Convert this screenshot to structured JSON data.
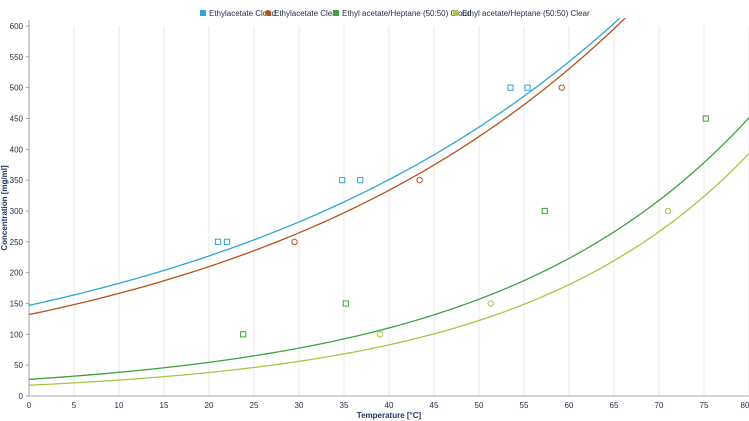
{
  "chart_data": {
    "type": "scatter",
    "title": "",
    "xlabel": "Temperature [°C]",
    "ylabel": "Concentration [mg/ml]",
    "xlim": [
      0,
      80
    ],
    "ylim": [
      0,
      600
    ],
    "xticks": [
      0,
      5,
      10,
      15,
      20,
      25,
      30,
      35,
      40,
      45,
      50,
      55,
      60,
      65,
      70,
      75,
      80
    ],
    "yticks": [
      0,
      50,
      100,
      150,
      200,
      250,
      300,
      350,
      400,
      450,
      500,
      550,
      600
    ],
    "grid": "vertical",
    "legend": "top-center",
    "series": [
      {
        "name": "Ethylacetate Cloud",
        "color": "#2ea6d6",
        "marker": "square",
        "x": [
          21.0,
          22.0,
          34.8,
          36.8,
          53.5,
          55.4
        ],
        "y": [
          250,
          250,
          350,
          350,
          500,
          500
        ],
        "fit": {
          "a": 147,
          "b": 0.02175
        }
      },
      {
        "name": "Ethylacetate Clear",
        "color": "#b5521b",
        "marker": "circle",
        "x": [
          29.5,
          43.4,
          59.2
        ],
        "y": [
          250,
          350,
          500
        ],
        "fit": {
          "a": 132,
          "b": 0.02318
        }
      },
      {
        "name": "Ethyl acetate/Heptane (50:50) Cloud",
        "color": "#3ea23e",
        "marker": "square",
        "x": [
          23.8,
          35.2,
          57.3,
          75.2
        ],
        "y": [
          100,
          150,
          300,
          450
        ],
        "fit": {
          "a": 27,
          "b": 0.0352
        }
      },
      {
        "name": "Ethyl acetate/Heptane (50:50) Clear",
        "color": "#a8c544",
        "marker": "circle",
        "x": [
          39.0,
          51.3,
          71.0
        ],
        "y": [
          100,
          150,
          300
        ],
        "fit": {
          "a": 17.5,
          "b": 0.0389
        }
      }
    ]
  }
}
